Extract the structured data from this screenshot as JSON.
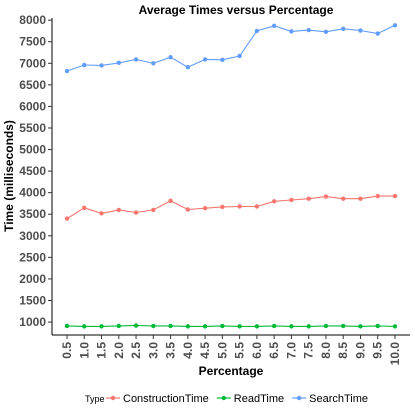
{
  "chart_data": {
    "type": "line",
    "title": "Average Times versus Percentage",
    "xlabel": "Percentage",
    "ylabel": "Time (milliseconds)",
    "x": [
      0.5,
      1.0,
      1.5,
      2.0,
      2.5,
      3.0,
      3.5,
      4.0,
      4.5,
      5.0,
      5.5,
      6.0,
      6.5,
      7.0,
      7.5,
      8.0,
      8.5,
      9.0,
      9.5,
      10.0
    ],
    "x_tick_labels": [
      "0.5",
      "1.0",
      "1.5",
      "2.0",
      "2.5",
      "3.0",
      "3.5",
      "4.0",
      "4.5",
      "5.0",
      "5.5",
      "6.0",
      "6.5",
      "7.0",
      "7.5",
      "8.0",
      "8.5",
      "9.0",
      "9.5",
      "10.0"
    ],
    "y_ticks": [
      1000,
      1500,
      2000,
      2500,
      3000,
      3500,
      4000,
      4500,
      5000,
      5500,
      6000,
      6500,
      7000,
      7500,
      8000
    ],
    "ylim": [
      700,
      8050
    ],
    "grid": false,
    "legend": {
      "title": "Type",
      "position": "bottom"
    },
    "series": [
      {
        "name": "ConstructionTime",
        "color": "#F8766D",
        "values": [
          3400,
          3650,
          3520,
          3600,
          3540,
          3600,
          3810,
          3610,
          3640,
          3670,
          3680,
          3680,
          3800,
          3830,
          3860,
          3910,
          3860,
          3860,
          3920,
          3920
        ]
      },
      {
        "name": "ReadTime",
        "color": "#00BA38",
        "values": [
          910,
          900,
          900,
          910,
          920,
          910,
          910,
          900,
          900,
          910,
          900,
          900,
          910,
          900,
          900,
          910,
          910,
          900,
          910,
          900
        ]
      },
      {
        "name": "SearchTime",
        "color": "#619CFF",
        "values": [
          6820,
          6960,
          6950,
          7010,
          7090,
          7000,
          7140,
          6910,
          7090,
          7080,
          7170,
          7750,
          7870,
          7740,
          7770,
          7730,
          7800,
          7760,
          7690,
          7880
        ]
      }
    ]
  }
}
